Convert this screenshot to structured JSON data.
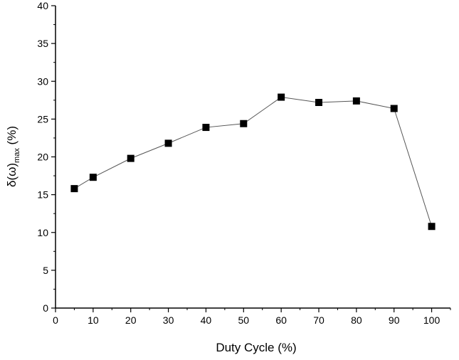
{
  "chart_data": {
    "type": "scatter",
    "title": "",
    "xlabel": "Duty Cycle (%)",
    "ylabel": {
      "main": "δ(ω)",
      "subscript": "max",
      "suffix": " (%)"
    },
    "xlim": [
      0,
      105
    ],
    "ylim": [
      0,
      40
    ],
    "xticks": [
      0,
      10,
      20,
      30,
      40,
      50,
      60,
      70,
      80,
      90,
      100
    ],
    "yticks": [
      0,
      5,
      10,
      15,
      20,
      25,
      30,
      35,
      40
    ],
    "grid": false,
    "legend": "none",
    "marker": "square",
    "line": true,
    "colors": {
      "marker": "#000000",
      "line": "#555555",
      "axis": "#000000"
    },
    "series": [
      {
        "x": [
          5,
          10,
          20,
          30,
          40,
          50,
          60,
          70,
          80,
          90,
          100
        ],
        "values": [
          15.8,
          17.3,
          19.8,
          21.8,
          23.9,
          24.4,
          27.9,
          27.2,
          27.4,
          26.4,
          10.8
        ]
      }
    ]
  }
}
